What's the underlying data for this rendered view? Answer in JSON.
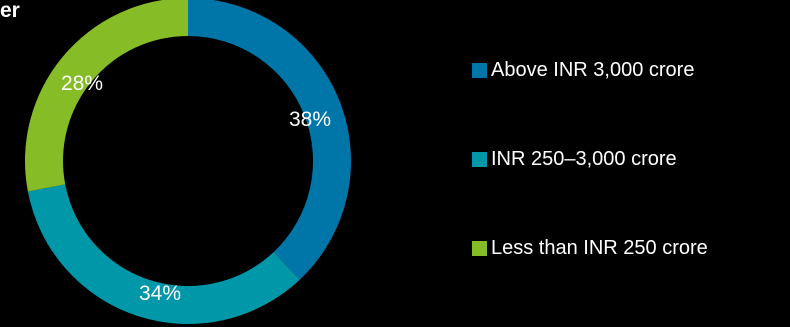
{
  "title_fragment": "er",
  "chart_data": {
    "type": "pie",
    "categories": [
      "Above INR 3,000 crore",
      "INR 250–3,000 crore",
      "Less than INR 250 crore"
    ],
    "values": [
      38,
      34,
      28
    ],
    "labels": [
      "38%",
      "34%",
      "28%"
    ],
    "colors": [
      "#0076A8",
      "#0097A9",
      "#86BC25"
    ],
    "donut": true,
    "legend_position": "right",
    "title": "",
    "xlabel": "",
    "ylabel": ""
  },
  "legend": {
    "items": [
      {
        "label": "Above INR 3,000 crore",
        "color": "#0076A8"
      },
      {
        "label": "INR 250–3,000 crore",
        "color": "#0097A9"
      },
      {
        "label": "Less than INR 250 crore",
        "color": "#86BC25"
      }
    ]
  }
}
